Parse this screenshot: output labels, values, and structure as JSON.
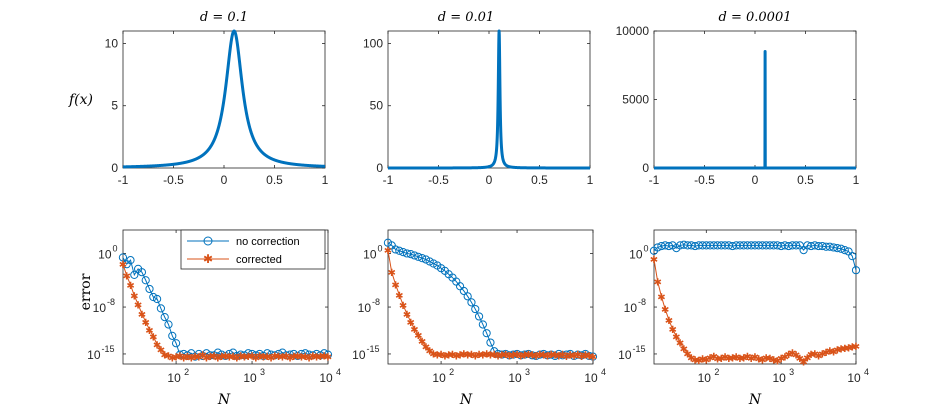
{
  "colors": {
    "blue": "#0072BD",
    "orange": "#D95319",
    "axis": "#262626"
  },
  "chart_data": [
    {
      "type": "line",
      "panel": "top-1",
      "title": "d = 0.1",
      "ylabel": "f(x)",
      "xlabel": "",
      "xlim": [
        -1,
        1
      ],
      "ylim": [
        0,
        11
      ],
      "xticks": [
        -1,
        -0.5,
        0,
        0.5,
        1
      ],
      "xtick_labels": [
        "-1",
        "-0.5",
        "0",
        "0.5",
        "1"
      ],
      "yticks": [
        0,
        5,
        10
      ],
      "ytick_labels": [
        "0",
        "5",
        "10"
      ],
      "function": "1/(d + (x-0.1)^2) * d^?",
      "peak_x": 0.1,
      "peak_y": 11,
      "width": 0.1
    },
    {
      "type": "line",
      "panel": "top-2",
      "title": "d = 0.01",
      "ylabel": "",
      "xlabel": "",
      "xlim": [
        -1,
        1
      ],
      "ylim": [
        0,
        110
      ],
      "xticks": [
        -1,
        -0.5,
        0,
        0.5,
        1
      ],
      "xtick_labels": [
        "-1",
        "-0.5",
        "0",
        "0.5",
        "1"
      ],
      "yticks": [
        0,
        50,
        100
      ],
      "ytick_labels": [
        "0",
        "50",
        "100"
      ],
      "peak_x": 0.1,
      "peak_y": 110,
      "width": 0.01
    },
    {
      "type": "line",
      "panel": "top-3",
      "title": "d = 0.0001",
      "ylabel": "",
      "xlabel": "",
      "xlim": [
        -1,
        1
      ],
      "ylim": [
        0,
        10000
      ],
      "xticks": [
        -1,
        -0.5,
        0,
        0.5,
        1
      ],
      "xtick_labels": [
        "-1",
        "-0.5",
        "0",
        "0.5",
        "1"
      ],
      "yticks": [
        0,
        5000,
        10000
      ],
      "ytick_labels": [
        "0",
        "5000",
        "10000"
      ],
      "peak_x": 0.1,
      "peak_y": 8500,
      "width": 0.0001
    },
    {
      "type": "line",
      "panel": "bottom-1",
      "scale": "loglog",
      "ylabel": "error",
      "xlabel": "N",
      "xlim": [
        20,
        10000
      ],
      "ylim_exp": [
        -16.5,
        3.5
      ],
      "xticks_exp": [
        2,
        3,
        4
      ],
      "xtick_labels": [
        "10",
        "10",
        "10"
      ],
      "xtick_sup": [
        "2",
        "3",
        "4"
      ],
      "yticks_exp": [
        0,
        -8,
        -15
      ],
      "ytick_labels": [
        "10",
        "10",
        "10"
      ],
      "ytick_sup": [
        "0",
        "-8",
        "-15"
      ],
      "legend": {
        "entries": [
          "no correction",
          "corrected"
        ],
        "position": "top-right"
      },
      "series": [
        {
          "name": "no correction",
          "x_exp": [
            1.3,
            1.35,
            1.4,
            1.45,
            1.5,
            1.55,
            1.6,
            1.65,
            1.7,
            1.75,
            1.8,
            1.85,
            1.9,
            1.95,
            2.0,
            2.05,
            2.1,
            2.15,
            2.2,
            2.25,
            2.3,
            2.35,
            2.4,
            2.45,
            2.5,
            2.55,
            2.6,
            2.65,
            2.7,
            2.75,
            2.8,
            2.85,
            2.9,
            2.95,
            3.0,
            3.05,
            3.1,
            3.15,
            3.2,
            3.25,
            3.3,
            3.35,
            3.4,
            3.45,
            3.5,
            3.55,
            3.6,
            3.65,
            3.7,
            3.75,
            3.8,
            3.85,
            3.9,
            3.95,
            4.0
          ],
          "y_exp": [
            -0.6,
            -1.6,
            -1.0,
            -3.2,
            -2.3,
            -2.8,
            -4.0,
            -5.3,
            -6.5,
            -6.8,
            -8.2,
            -9.5,
            -10.6,
            -12.3,
            -13.4,
            -15.1,
            -15.0,
            -15.2,
            -14.9,
            -15.4,
            -15.0,
            -15.3,
            -14.9,
            -15.2,
            -15.2,
            -14.8,
            -15.1,
            -15.3,
            -15.0,
            -14.8,
            -15.3,
            -15.1,
            -15.2,
            -14.9,
            -15.0,
            -15.2,
            -15.0,
            -15.3,
            -14.9,
            -15.1,
            -15.2,
            -15.0,
            -14.8,
            -15.2,
            -15.1,
            -15.0,
            -15.3,
            -15.0,
            -14.9,
            -15.1,
            -15.2,
            -15.0,
            -15.2,
            -14.9,
            -15.1
          ]
        },
        {
          "name": "corrected",
          "x_exp": [
            1.3,
            1.35,
            1.4,
            1.45,
            1.5,
            1.55,
            1.6,
            1.65,
            1.7,
            1.75,
            1.8,
            1.85,
            1.9,
            1.95,
            2.0,
            2.05,
            2.1,
            2.15,
            2.2,
            2.25,
            2.3,
            2.35,
            2.4,
            2.45,
            2.5,
            2.55,
            2.6,
            2.65,
            2.7,
            2.75,
            2.8,
            2.85,
            2.9,
            2.95,
            3.0,
            3.05,
            3.1,
            3.15,
            3.2,
            3.25,
            3.3,
            3.35,
            3.4,
            3.45,
            3.5,
            3.55,
            3.6,
            3.65,
            3.7,
            3.75,
            3.8,
            3.85,
            3.9,
            3.95,
            4.0
          ],
          "y_exp": [
            -1.6,
            -3.3,
            -4.7,
            -6.3,
            -7.6,
            -9.0,
            -10.2,
            -11.4,
            -12.4,
            -13.6,
            -14.3,
            -15.1,
            -15.2,
            -15.5,
            -15.4,
            -15.2,
            -15.5,
            -15.3,
            -15.5,
            -15.3,
            -15.4,
            -15.1,
            -15.5,
            -15.3,
            -15.2,
            -15.5,
            -15.3,
            -15.2,
            -15.4,
            -15.3,
            -15.5,
            -15.2,
            -15.4,
            -15.3,
            -15.2,
            -15.5,
            -15.2,
            -15.4,
            -15.3,
            -15.5,
            -15.2,
            -15.3,
            -15.4,
            -15.2,
            -15.5,
            -15.3,
            -15.2,
            -15.4,
            -15.3,
            -15.5,
            -15.2,
            -15.4,
            -15.3,
            -15.2,
            -15.4
          ]
        }
      ]
    },
    {
      "type": "line",
      "panel": "bottom-2",
      "scale": "loglog",
      "ylabel": "",
      "xlabel": "N",
      "xlim": [
        20,
        10000
      ],
      "ylim_exp": [
        -16.5,
        3.5
      ],
      "xticks_exp": [
        2,
        3,
        4
      ],
      "xtick_labels": [
        "10",
        "10",
        "10"
      ],
      "xtick_sup": [
        "2",
        "3",
        "4"
      ],
      "yticks_exp": [
        0,
        -8,
        -15
      ],
      "ytick_labels": [
        "10",
        "10",
        "10"
      ],
      "ytick_sup": [
        "0",
        "-8",
        "-15"
      ],
      "series": [
        {
          "name": "no correction",
          "x_exp": [
            1.3,
            1.35,
            1.4,
            1.45,
            1.5,
            1.55,
            1.6,
            1.65,
            1.7,
            1.75,
            1.8,
            1.85,
            1.9,
            1.95,
            2.0,
            2.05,
            2.1,
            2.15,
            2.2,
            2.25,
            2.3,
            2.35,
            2.4,
            2.45,
            2.5,
            2.55,
            2.6,
            2.65,
            2.7,
            2.75,
            2.8,
            2.85,
            2.9,
            2.95,
            3.0,
            3.05,
            3.1,
            3.15,
            3.2,
            3.25,
            3.3,
            3.35,
            3.4,
            3.45,
            3.5,
            3.55,
            3.6,
            3.65,
            3.7,
            3.75,
            3.8,
            3.85,
            3.9,
            3.95,
            4.0
          ],
          "y_exp": [
            1.6,
            1.2,
            0.6,
            0.4,
            0.2,
            0.0,
            -0.1,
            -0.3,
            -0.5,
            -0.7,
            -0.9,
            -1.2,
            -1.5,
            -1.8,
            -2.2,
            -2.6,
            -3.1,
            -3.6,
            -4.2,
            -4.9,
            -5.6,
            -6.4,
            -7.3,
            -8.3,
            -9.4,
            -10.6,
            -11.9,
            -13.3,
            -14.6,
            -15.0,
            -15.1,
            -15.0,
            -15.2,
            -15.1,
            -15.0,
            -15.2,
            -15.1,
            -15.0,
            -15.2,
            -15.3,
            -15.1,
            -15.0,
            -15.2,
            -15.1,
            -15.3,
            -15.0,
            -15.2,
            -15.1,
            -15.0,
            -15.3,
            -15.1,
            -15.2,
            -15.0,
            -15.3,
            -15.4
          ]
        },
        {
          "name": "corrected",
          "x_exp": [
            1.3,
            1.35,
            1.4,
            1.45,
            1.5,
            1.55,
            1.6,
            1.65,
            1.7,
            1.75,
            1.8,
            1.85,
            1.9,
            1.95,
            2.0,
            2.05,
            2.1,
            2.15,
            2.2,
            2.25,
            2.3,
            2.35,
            2.4,
            2.45,
            2.5,
            2.55,
            2.6,
            2.65,
            2.7,
            2.75,
            2.8,
            2.85,
            2.9,
            2.95,
            3.0,
            3.05,
            3.1,
            3.15,
            3.2,
            3.25,
            3.3,
            3.35,
            3.4,
            3.45,
            3.5,
            3.55,
            3.6,
            3.65,
            3.7,
            3.75,
            3.8,
            3.85,
            3.9,
            3.95,
            4.0
          ],
          "y_exp": [
            0.5,
            -2.8,
            -4.6,
            -6.2,
            -7.7,
            -9.0,
            -10.2,
            -11.3,
            -12.2,
            -13.1,
            -13.9,
            -14.5,
            -14.9,
            -15.1,
            -15.0,
            -15.2,
            -15.1,
            -15.0,
            -15.2,
            -15.1,
            -14.9,
            -15.1,
            -15.0,
            -15.2,
            -15.0,
            -15.1,
            -14.9,
            -15.1,
            -15.0,
            -15.2,
            -15.1,
            -15.0,
            -15.2,
            -15.1,
            -15.0,
            -15.2,
            -15.1,
            -15.0,
            -15.1,
            -15.2,
            -15.0,
            -15.1,
            -15.2,
            -15.0,
            -15.1,
            -15.2,
            -15.0,
            -15.3,
            -15.1,
            -15.2,
            -15.0,
            -15.3,
            -15.1,
            -15.2,
            -15.4
          ]
        }
      ]
    },
    {
      "type": "line",
      "panel": "bottom-3",
      "scale": "loglog",
      "ylabel": "",
      "xlabel": "N",
      "xlim": [
        20,
        10000
      ],
      "ylim_exp": [
        -16.5,
        3.5
      ],
      "xticks_exp": [
        2,
        3,
        4
      ],
      "xtick_labels": [
        "10",
        "10",
        "10"
      ],
      "xtick_sup": [
        "2",
        "3",
        "4"
      ],
      "yticks_exp": [
        0,
        -8,
        -15
      ],
      "ytick_labels": [
        "10",
        "10",
        "10"
      ],
      "ytick_sup": [
        "0",
        "-8",
        "-15"
      ],
      "series": [
        {
          "name": "no correction",
          "x_exp": [
            1.3,
            1.35,
            1.4,
            1.45,
            1.5,
            1.55,
            1.6,
            1.65,
            1.7,
            1.75,
            1.8,
            1.85,
            1.9,
            1.95,
            2.0,
            2.05,
            2.1,
            2.15,
            2.2,
            2.25,
            2.3,
            2.35,
            2.4,
            2.45,
            2.5,
            2.55,
            2.6,
            2.65,
            2.7,
            2.75,
            2.8,
            2.85,
            2.9,
            2.95,
            3.0,
            3.05,
            3.1,
            3.15,
            3.2,
            3.25,
            3.3,
            3.35,
            3.4,
            3.45,
            3.5,
            3.55,
            3.6,
            3.65,
            3.7,
            3.75,
            3.8,
            3.85,
            3.9,
            3.95,
            4.0
          ],
          "y_exp": [
            0.4,
            0.9,
            1.1,
            1.2,
            1.1,
            1.2,
            0.8,
            1.2,
            1.3,
            1.2,
            1.2,
            1.1,
            1.2,
            1.2,
            1.2,
            1.2,
            1.2,
            1.2,
            1.2,
            1.2,
            1.2,
            1.1,
            1.2,
            1.2,
            1.2,
            1.2,
            1.2,
            1.2,
            1.2,
            1.2,
            1.2,
            1.2,
            1.2,
            1.2,
            1.1,
            1.2,
            1.1,
            1.2,
            1.2,
            1.2,
            0.5,
            1.2,
            1.1,
            1.2,
            1.1,
            1.1,
            1.0,
            1.0,
            0.9,
            0.8,
            0.7,
            0.5,
            0.3,
            -0.4,
            -2.5
          ]
        },
        {
          "name": "corrected",
          "x_exp": [
            1.3,
            1.35,
            1.4,
            1.45,
            1.5,
            1.55,
            1.6,
            1.65,
            1.7,
            1.75,
            1.8,
            1.85,
            1.9,
            1.95,
            2.0,
            2.05,
            2.1,
            2.15,
            2.2,
            2.25,
            2.3,
            2.35,
            2.4,
            2.45,
            2.5,
            2.55,
            2.6,
            2.65,
            2.7,
            2.75,
            2.8,
            2.85,
            2.9,
            2.95,
            3.0,
            3.05,
            3.1,
            3.15,
            3.2,
            3.25,
            3.3,
            3.35,
            3.4,
            3.45,
            3.5,
            3.55,
            3.6,
            3.65,
            3.7,
            3.75,
            3.8,
            3.85,
            3.9,
            3.95,
            4.0
          ],
          "y_exp": [
            -0.8,
            -4.2,
            -6.4,
            -8.3,
            -9.9,
            -11.3,
            -12.4,
            -13.3,
            -14.2,
            -14.9,
            -15.5,
            -15.8,
            -15.9,
            -15.7,
            -15.8,
            -15.5,
            -15.3,
            -15.7,
            -15.6,
            -15.4,
            -15.6,
            -15.5,
            -15.4,
            -15.6,
            -15.5,
            -15.3,
            -15.6,
            -15.4,
            -15.7,
            -15.8,
            -15.5,
            -15.6,
            -15.8,
            -16.0,
            -15.6,
            -15.4,
            -15.0,
            -14.8,
            -15.1,
            -15.6,
            -16.1,
            -15.5,
            -15.0,
            -14.9,
            -15.2,
            -14.9,
            -14.7,
            -14.5,
            -14.6,
            -14.3,
            -14.2,
            -14.1,
            -14.0,
            -13.9,
            -13.8
          ]
        }
      ]
    }
  ]
}
